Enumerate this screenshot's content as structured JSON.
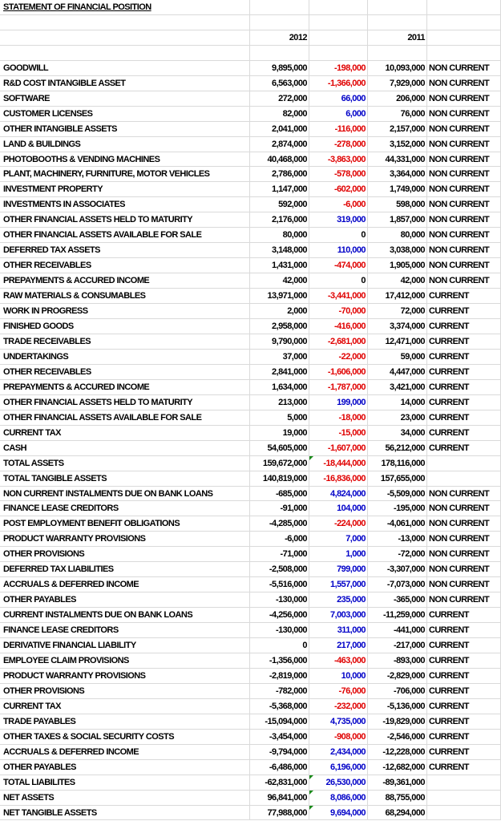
{
  "title": "STATEMENT OF FINANCIAL POSITION",
  "headers": {
    "year_current": "2012",
    "year_prior": "2011"
  },
  "colors": {
    "negative_change": "#e00000",
    "positive_change": "#0000c8",
    "flag": "#1a8a1a"
  },
  "rows": [
    {
      "label": "GOODWILL",
      "y2012": "9,895,000",
      "change": "-198,000",
      "y2011": "10,093,000",
      "class": "NON CURRENT"
    },
    {
      "label": "R&D COST INTANGIBLE ASSET",
      "y2012": "6,563,000",
      "change": "-1,366,000",
      "y2011": "7,929,000",
      "class": "NON CURRENT"
    },
    {
      "label": "SOFTWARE",
      "y2012": "272,000",
      "change": "66,000",
      "y2011": "206,000",
      "class": "NON CURRENT"
    },
    {
      "label": "CUSTOMER LICENSES",
      "y2012": "82,000",
      "change": "6,000",
      "y2011": "76,000",
      "class": "NON CURRENT"
    },
    {
      "label": "OTHER INTANGIBLE ASSETS",
      "y2012": "2,041,000",
      "change": "-116,000",
      "y2011": "2,157,000",
      "class": "NON CURRENT"
    },
    {
      "label": "LAND & BUILDINGS",
      "y2012": "2,874,000",
      "change": "-278,000",
      "y2011": "3,152,000",
      "class": "NON CURRENT"
    },
    {
      "label": "PHOTOBOOTHS & VENDING MACHINES",
      "y2012": "40,468,000",
      "change": "-3,863,000",
      "y2011": "44,331,000",
      "class": "NON CURRENT"
    },
    {
      "label": "PLANT, MACHINERY, FURNITURE, MOTOR VEHICLES",
      "y2012": "2,786,000",
      "change": "-578,000",
      "y2011": "3,364,000",
      "class": "NON CURRENT"
    },
    {
      "label": "INVESTMENT PROPERTY",
      "y2012": "1,147,000",
      "change": "-602,000",
      "y2011": "1,749,000",
      "class": "NON CURRENT"
    },
    {
      "label": "INVESTMENTS IN ASSOCIATES",
      "y2012": "592,000",
      "change": "-6,000",
      "y2011": "598,000",
      "class": "NON CURRENT"
    },
    {
      "label": "OTHER FINANCIAL ASSETS HELD TO MATURITY",
      "y2012": "2,176,000",
      "change": "319,000",
      "y2011": "1,857,000",
      "class": "NON CURRENT"
    },
    {
      "label": "OTHER FINANCIAL ASSETS AVAILABLE FOR SALE",
      "y2012": "80,000",
      "change": "0",
      "y2011": "80,000",
      "class": "NON CURRENT"
    },
    {
      "label": "DEFERRED TAX ASSETS",
      "y2012": "3,148,000",
      "change": "110,000",
      "y2011": "3,038,000",
      "class": "NON CURRENT"
    },
    {
      "label": "OTHER RECEIVABLES",
      "y2012": "1,431,000",
      "change": "-474,000",
      "y2011": "1,905,000",
      "class": "NON CURRENT"
    },
    {
      "label": "PREPAYMENTS & ACCURED INCOME",
      "y2012": "42,000",
      "change": "0",
      "y2011": "42,000",
      "class": "NON CURRENT"
    },
    {
      "label": "RAW MATERIALS & CONSUMABLES",
      "y2012": "13,971,000",
      "change": "-3,441,000",
      "y2011": "17,412,000",
      "class": "CURRENT"
    },
    {
      "label": "WORK IN PROGRESS",
      "y2012": "2,000",
      "change": "-70,000",
      "y2011": "72,000",
      "class": "CURRENT"
    },
    {
      "label": "FINISHED GOODS",
      "y2012": "2,958,000",
      "change": "-416,000",
      "y2011": "3,374,000",
      "class": "CURRENT"
    },
    {
      "label": "TRADE RECEIVABLES",
      "y2012": "9,790,000",
      "change": "-2,681,000",
      "y2011": "12,471,000",
      "class": "CURRENT"
    },
    {
      "label": "UNDERTAKINGS",
      "y2012": "37,000",
      "change": "-22,000",
      "y2011": "59,000",
      "class": "CURRENT"
    },
    {
      "label": "OTHER RECEIVABLES",
      "y2012": "2,841,000",
      "change": "-1,606,000",
      "y2011": "4,447,000",
      "class": "CURRENT"
    },
    {
      "label": "PREPAYMENTS & ACCURED INCOME",
      "y2012": "1,634,000",
      "change": "-1,787,000",
      "y2011": "3,421,000",
      "class": "CURRENT"
    },
    {
      "label": "OTHER FINANCIAL ASSETS HELD TO MATURITY",
      "y2012": "213,000",
      "change": "199,000",
      "y2011": "14,000",
      "class": "CURRENT"
    },
    {
      "label": "OTHER FINANCIAL ASSETS AVAILABLE FOR SALE",
      "y2012": "5,000",
      "change": "-18,000",
      "y2011": "23,000",
      "class": "CURRENT"
    },
    {
      "label": "CURRENT TAX",
      "y2012": "19,000",
      "change": "-15,000",
      "y2011": "34,000",
      "class": "CURRENT"
    },
    {
      "label": "CASH",
      "y2012": "54,605,000",
      "change": "-1,607,000",
      "y2011": "56,212,000",
      "class": "CURRENT"
    },
    {
      "label": "TOTAL ASSETS",
      "y2012": "159,672,000",
      "change": "-18,444,000",
      "y2011": "178,116,000",
      "class": "",
      "flag": true
    },
    {
      "label": "TOTAL TANGIBLE ASSETS",
      "y2012": "140,819,000",
      "change": "-16,836,000",
      "y2011": "157,655,000",
      "class": ""
    },
    {
      "label": "NON CURRENT INSTALMENTS DUE ON BANK LOANS",
      "y2012": "-685,000",
      "change": "4,824,000",
      "y2011": "-5,509,000",
      "class": "NON CURRENT"
    },
    {
      "label": "FINANCE LEASE CREDITORS",
      "y2012": "-91,000",
      "change": "104,000",
      "y2011": "-195,000",
      "class": "NON CURRENT"
    },
    {
      "label": "POST EMPLOYMENT BENEFIT OBLIGATIONS",
      "y2012": "-4,285,000",
      "change": "-224,000",
      "y2011": "-4,061,000",
      "class": "NON CURRENT"
    },
    {
      "label": "PRODUCT WARRANTY PROVISIONS",
      "y2012": "-6,000",
      "change": "7,000",
      "y2011": "-13,000",
      "class": "NON CURRENT"
    },
    {
      "label": "OTHER PROVISIONS",
      "y2012": "-71,000",
      "change": "1,000",
      "y2011": "-72,000",
      "class": "NON CURRENT"
    },
    {
      "label": "DEFERRED TAX LIABILITIES",
      "y2012": "-2,508,000",
      "change": "799,000",
      "y2011": "-3,307,000",
      "class": "NON CURRENT"
    },
    {
      "label": "ACCRUALS & DEFERRED INCOME",
      "y2012": "-5,516,000",
      "change": "1,557,000",
      "y2011": "-7,073,000",
      "class": "NON CURRENT"
    },
    {
      "label": "OTHER PAYABLES",
      "y2012": "-130,000",
      "change": "235,000",
      "y2011": "-365,000",
      "class": "NON CURRENT"
    },
    {
      "label": "CURRENT INSTALMENTS DUE ON BANK LOANS",
      "y2012": "-4,256,000",
      "change": "7,003,000",
      "y2011": "-11,259,000",
      "class": "CURRENT"
    },
    {
      "label": "FINANCE LEASE CREDITORS",
      "y2012": "-130,000",
      "change": "311,000",
      "y2011": "-441,000",
      "class": "CURRENT"
    },
    {
      "label": "DERIVATIVE FINANCIAL LIABILITY",
      "y2012": "0",
      "change": "217,000",
      "y2011": "-217,000",
      "class": "CURRENT"
    },
    {
      "label": "EMPLOYEE CLAIM PROVISIONS",
      "y2012": "-1,356,000",
      "change": "-463,000",
      "y2011": "-893,000",
      "class": "CURRENT"
    },
    {
      "label": "PRODUCT WARRANTY PROVISIONS",
      "y2012": "-2,819,000",
      "change": "10,000",
      "y2011": "-2,829,000",
      "class": "CURRENT"
    },
    {
      "label": "OTHER PROVISIONS",
      "y2012": "-782,000",
      "change": "-76,000",
      "y2011": "-706,000",
      "class": "CURRENT"
    },
    {
      "label": "CURRENT TAX",
      "y2012": "-5,368,000",
      "change": "-232,000",
      "y2011": "-5,136,000",
      "class": "CURRENT"
    },
    {
      "label": "TRADE PAYABLES",
      "y2012": "-15,094,000",
      "change": "4,735,000",
      "y2011": "-19,829,000",
      "class": "CURRENT"
    },
    {
      "label": "OTHER TAXES & SOCIAL SECURITY COSTS",
      "y2012": "-3,454,000",
      "change": "-908,000",
      "y2011": "-2,546,000",
      "class": "CURRENT"
    },
    {
      "label": "ACCRUALS & DEFERRED INCOME",
      "y2012": "-9,794,000",
      "change": "2,434,000",
      "y2011": "-12,228,000",
      "class": "CURRENT"
    },
    {
      "label": "OTHER PAYABLES",
      "y2012": "-6,486,000",
      "change": "6,196,000",
      "y2011": "-12,682,000",
      "class": "CURRENT"
    },
    {
      "label": "TOTAL LIABILITES",
      "y2012": "-62,831,000",
      "change": "26,530,000",
      "y2011": "-89,361,000",
      "class": "",
      "flag": true
    },
    {
      "label": "NET ASSETS",
      "y2012": "96,841,000",
      "change": "8,086,000",
      "y2011": "88,755,000",
      "class": "",
      "flag": true
    },
    {
      "label": "NET TANGIBLE ASSETS",
      "y2012": "77,988,000",
      "change": "9,694,000",
      "y2011": "68,294,000",
      "class": "",
      "flag": true
    }
  ]
}
